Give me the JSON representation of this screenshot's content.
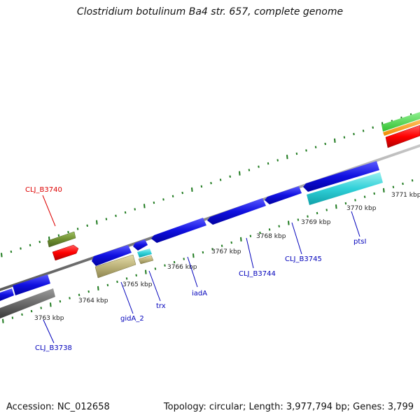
{
  "title": "Clostridium botulinum Ba4 str. 657, complete genome",
  "footer": {
    "accession": "Accession: NC_012658",
    "topology": "Topology: circular; Length: 3,977,794 bp; Genes: 3,799"
  },
  "colors": {
    "backbone": "#8a8a8a",
    "tick": "#1e7a1e",
    "cds": "#1010e0",
    "red_label": "#dd0000",
    "blue_label": "#0000bb"
  },
  "kbp_labels": [
    "3763 kbp",
    "3764 kbp",
    "3765 kbp",
    "3766 kbp",
    "3767 kbp",
    "3768 kbp",
    "3769 kbp",
    "3770 kbp",
    "3771 kbp"
  ],
  "gene_labels": [
    {
      "text": "CLJ_B3740",
      "color": "red"
    },
    {
      "text": "CLJ_B3738",
      "color": "blue"
    },
    {
      "text": "gidA_2",
      "color": "blue"
    },
    {
      "text": "trx",
      "color": "blue"
    },
    {
      "text": "iadA",
      "color": "blue"
    },
    {
      "text": "CLJ_B3744",
      "color": "blue"
    },
    {
      "text": "CLJ_B3745",
      "color": "blue"
    },
    {
      "text": "ptsI",
      "color": "blue"
    }
  ]
}
